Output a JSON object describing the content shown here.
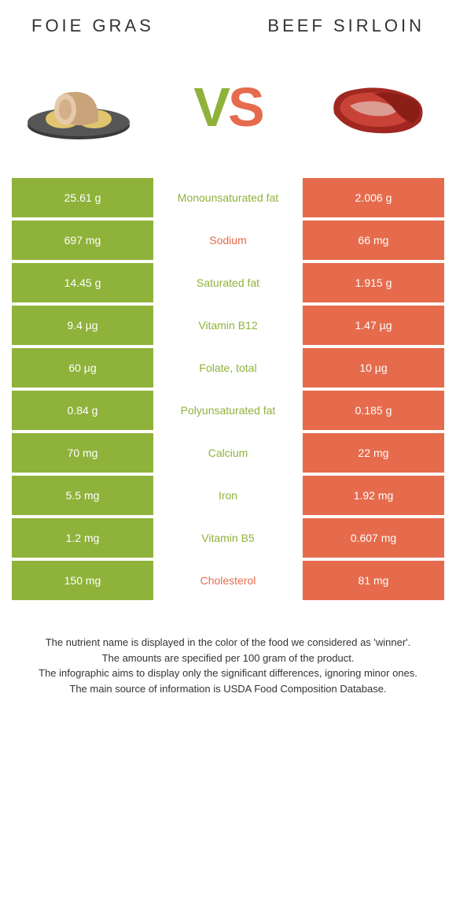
{
  "colors": {
    "left": "#8fb23b",
    "right": "#e56b4c",
    "mid_bg": "#ffffff",
    "label_left": "#8fb23b",
    "label_right": "#e56b4c",
    "text_on_color": "#ffffff",
    "header_text": "#333333"
  },
  "header": {
    "left_title": "Foie gras",
    "right_title": "Beef sirloin"
  },
  "vs": {
    "v": "V",
    "s": "S"
  },
  "rows": [
    {
      "left": "25.61 g",
      "label": "Monounsaturated fat",
      "right": "2.006 g",
      "winner": "left"
    },
    {
      "left": "697 mg",
      "label": "Sodium",
      "right": "66 mg",
      "winner": "right"
    },
    {
      "left": "14.45 g",
      "label": "Saturated fat",
      "right": "1.915 g",
      "winner": "left"
    },
    {
      "left": "9.4 µg",
      "label": "Vitamin B12",
      "right": "1.47 µg",
      "winner": "left"
    },
    {
      "left": "60 µg",
      "label": "Folate, total",
      "right": "10 µg",
      "winner": "left"
    },
    {
      "left": "0.84 g",
      "label": "Polyunsaturated fat",
      "right": "0.185 g",
      "winner": "left"
    },
    {
      "left": "70 mg",
      "label": "Calcium",
      "right": "22 mg",
      "winner": "left"
    },
    {
      "left": "5.5 mg",
      "label": "Iron",
      "right": "1.92 mg",
      "winner": "left"
    },
    {
      "left": "1.2 mg",
      "label": "Vitamin B5",
      "right": "0.607 mg",
      "winner": "left"
    },
    {
      "left": "150 mg",
      "label": "Cholesterol",
      "right": "81 mg",
      "winner": "right"
    }
  ],
  "footer": {
    "line1": "The nutrient name is displayed in the color of the food we considered as 'winner'.",
    "line2": "The amounts are specified per 100 gram of the product.",
    "line3": "The infographic aims to display only the significant differences, ignoring minor ones.",
    "line4": "The main source of information is USDA Food Composition Database."
  }
}
